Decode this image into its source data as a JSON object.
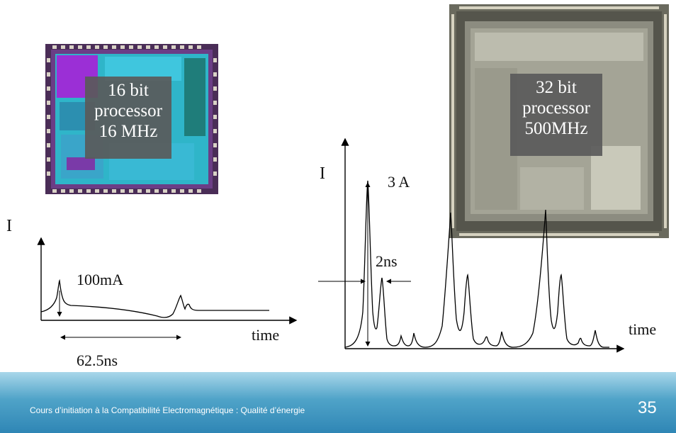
{
  "chip16": {
    "lines": [
      "16 bit",
      "processor",
      "16 MHz"
    ]
  },
  "chip32": {
    "lines": [
      "32 bit",
      "processor",
      "500MHz"
    ]
  },
  "left_plot": {
    "y_axis_label": "I",
    "x_axis_label": "time",
    "peak_label": "100mA",
    "period_label": "62.5ns"
  },
  "right_plot": {
    "y_axis_label": "I",
    "x_axis_label": "time",
    "peak_label": "3 A",
    "width_label": "2ns"
  },
  "footer": {
    "text": "Cours d’initiation à la Compatibilité Electromagnétique : Qualité d’énergie",
    "page_number": "35"
  },
  "colors": {
    "footer_gradient_top": "#a9d7ea",
    "footer_gradient_bottom": "#2f86b5",
    "chip16_die": "#5b3b6b",
    "chip32_die": "#6f6e62"
  }
}
